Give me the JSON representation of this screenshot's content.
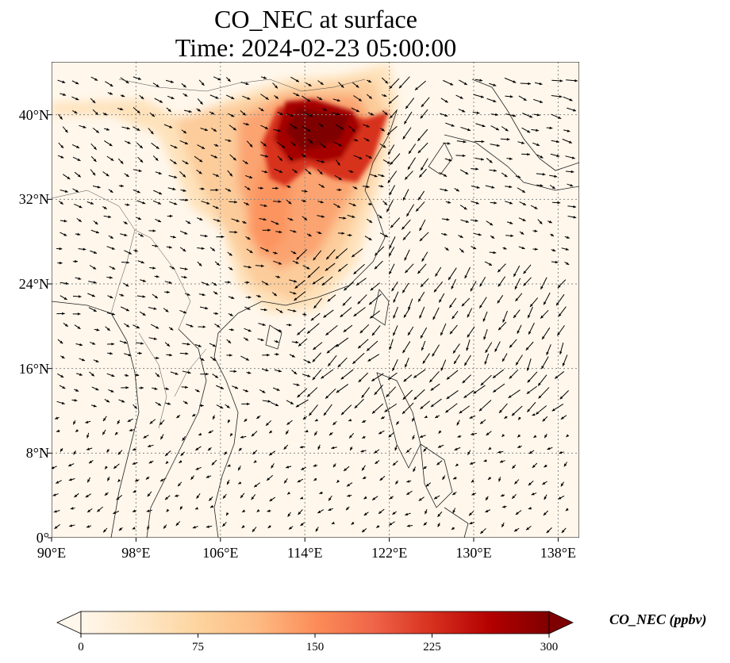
{
  "title_line1": "CO_NEC at surface",
  "title_line2": "Time: 2024-02-23 05:00:00",
  "map": {
    "lon_range": [
      90,
      140
    ],
    "lat_range": [
      0,
      45
    ],
    "lon_ticks": [
      90,
      98,
      106,
      114,
      122,
      130,
      138
    ],
    "lat_ticks": [
      0,
      8,
      16,
      24,
      32,
      40
    ],
    "lon_labels": [
      "90°E",
      "98°E",
      "106°E",
      "114°E",
      "122°E",
      "130°E",
      "138°E"
    ],
    "lat_labels": [
      "0°",
      "8°N",
      "16°N",
      "24°N",
      "32°N",
      "40°N"
    ],
    "gridlines": true,
    "field": "CO_NEC concentration with surface wind vectors",
    "colormap": "OrRd"
  },
  "colorbar": {
    "label": "CO_NEC (ppbv)",
    "ticks": [
      0,
      75,
      150,
      225,
      300
    ],
    "tick_labels": [
      "0",
      "75",
      "150",
      "225",
      "300"
    ],
    "colors": [
      "#fff7ec",
      "#fee8c8",
      "#fdd49e",
      "#fdbb84",
      "#fc8d59",
      "#ef6548",
      "#d7301f",
      "#b30000",
      "#7f0000"
    ],
    "extend": "both"
  }
}
